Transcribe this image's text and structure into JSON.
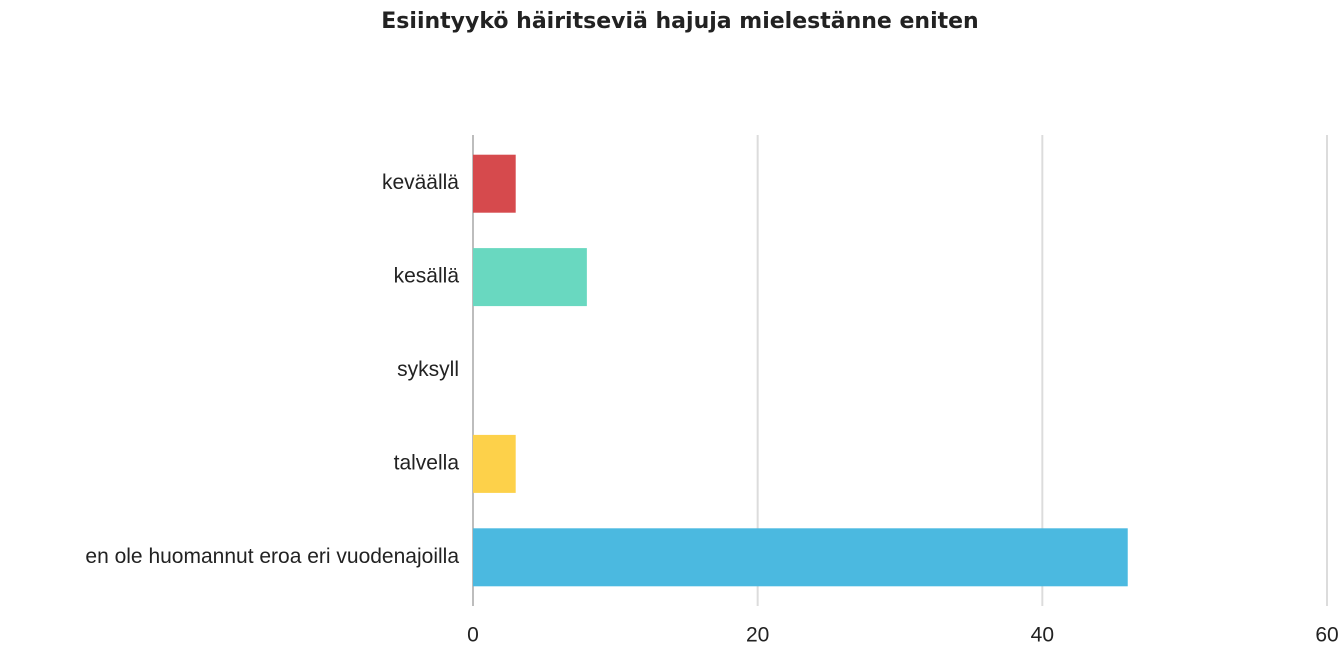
{
  "chart_data": {
    "type": "bar",
    "orientation": "horizontal",
    "title": "Esiintyykö häiritseviä hajuja mielestänne eniten",
    "categories": [
      "keväällä",
      "kesällä",
      "syksyll",
      "talvella",
      "en ole huomannut eroa eri vuodenajoilla"
    ],
    "values": [
      3,
      8,
      0,
      3,
      46
    ],
    "colors": [
      "#d64a4d",
      "#69d8c0",
      "#9b7fd1",
      "#fdd14a",
      "#4bb9e0"
    ],
    "xlim": [
      0,
      60
    ],
    "xticks": [
      0,
      20,
      40,
      60
    ],
    "grid": true
  }
}
